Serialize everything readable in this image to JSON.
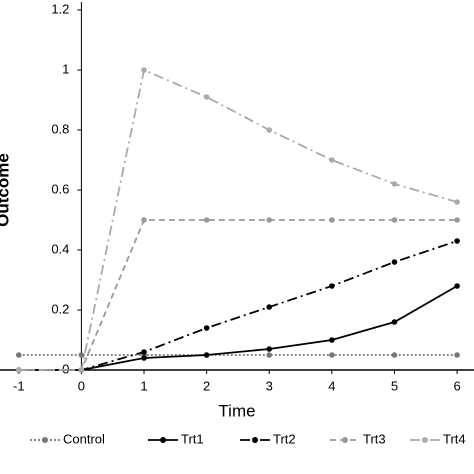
{
  "chart_data": {
    "type": "line",
    "x_label": "Time",
    "y_label": "Outcome",
    "x": [
      -1,
      0,
      1,
      2,
      3,
      4,
      5,
      6
    ],
    "xlim": [
      -1.3,
      6.27
    ],
    "ylim": [
      0,
      1.2
    ],
    "xticks": [
      -1,
      0,
      1,
      2,
      3,
      4,
      5,
      6
    ],
    "yticks": [
      0,
      0.2,
      0.4,
      0.6,
      0.8,
      1,
      1.2
    ],
    "series": [
      {
        "name": "Control",
        "color": "#777777",
        "style": "dotted",
        "values": [
          0.05,
          0.05,
          0.05,
          0.05,
          0.05,
          0.05,
          0.05,
          0.05
        ]
      },
      {
        "name": "Trt1",
        "color": "#000000",
        "style": "solid",
        "values": [
          0,
          0,
          0.04,
          0.05,
          0.07,
          0.1,
          0.16,
          0.28
        ]
      },
      {
        "name": "Trt2",
        "color": "#000000",
        "style": "dashdot",
        "values": [
          0,
          0,
          0.06,
          0.14,
          0.21,
          0.28,
          0.36,
          0.43
        ]
      },
      {
        "name": "Trt3",
        "color": "#999999",
        "style": "dashed",
        "values": [
          0,
          0,
          0.5,
          0.5,
          0.5,
          0.5,
          0.5,
          0.5
        ]
      },
      {
        "name": "Trt4",
        "color": "#aaaaaa",
        "style": "dashdot",
        "values": [
          0,
          0,
          1,
          0.91,
          0.8,
          0.7,
          0.62,
          0.56
        ]
      }
    ]
  }
}
